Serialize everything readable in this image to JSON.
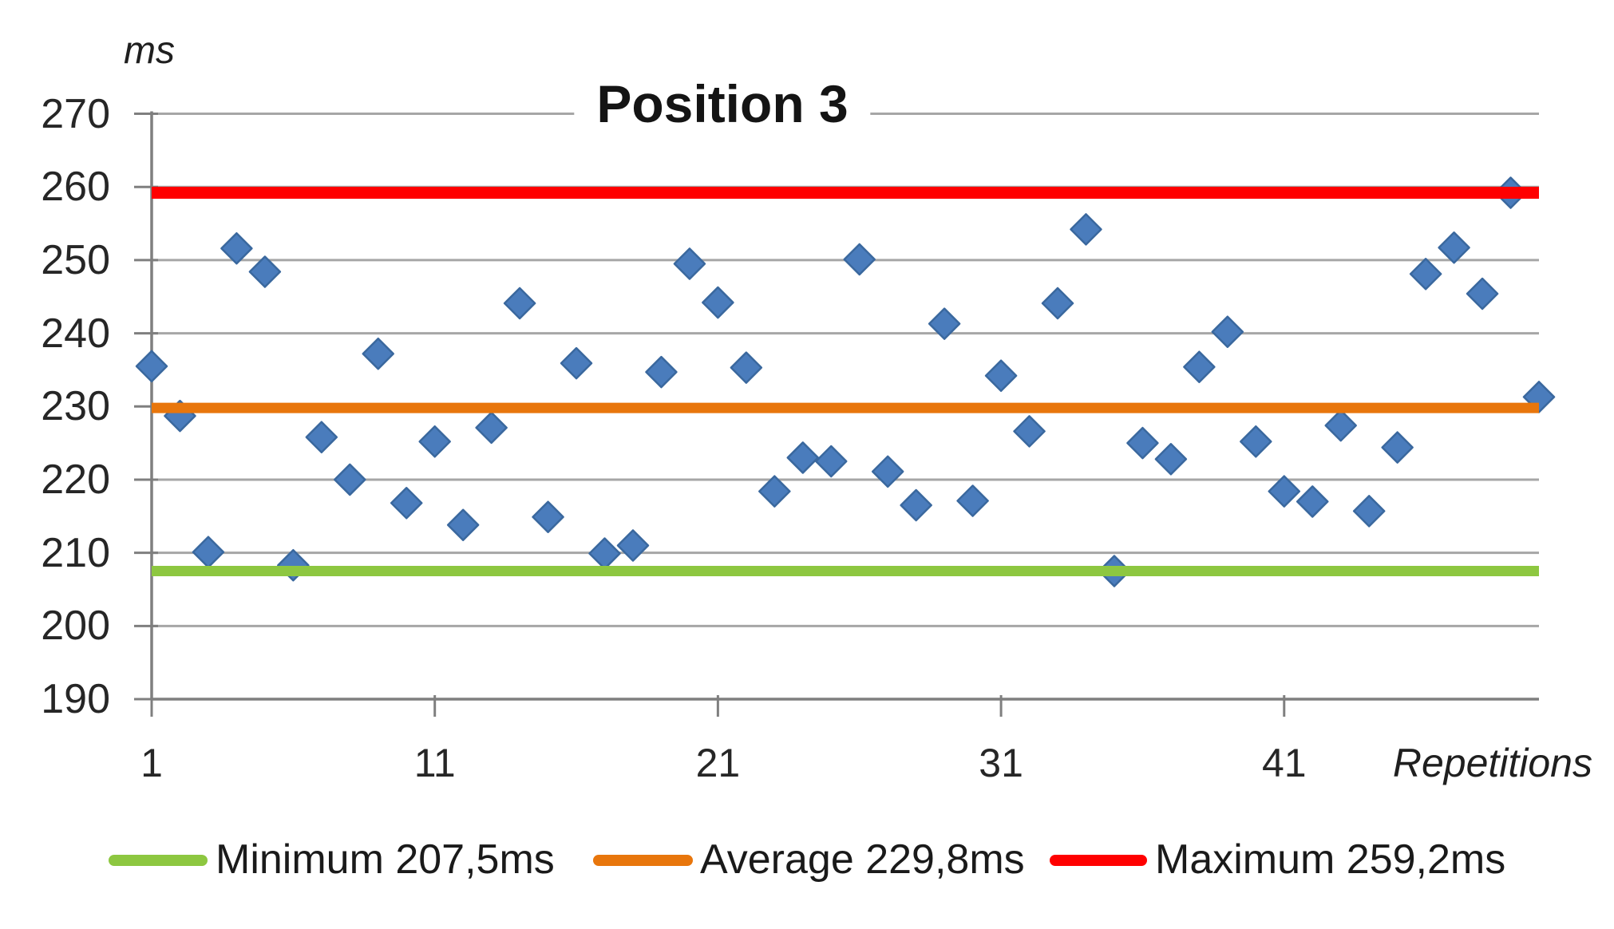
{
  "title": "Position 3",
  "y_axis": {
    "unit_label": "ms",
    "ticks": [
      270,
      260,
      250,
      240,
      230,
      220,
      210,
      200,
      190
    ]
  },
  "x_axis": {
    "label": "Repetitions",
    "ticks": [
      1,
      11,
      21,
      31,
      41
    ]
  },
  "legend": [
    {
      "name": "minimum",
      "label": "Minimum 207,5ms",
      "color": "#8DC740"
    },
    {
      "name": "average",
      "label": "Average 229,8ms",
      "color": "#E8760C"
    },
    {
      "name": "maximum",
      "label": "Maximum 259,2ms",
      "color": "#FF0000"
    }
  ],
  "colors": {
    "marker_fill": "#4A7CBC",
    "marker_edge": "#3A689E",
    "minimum_line": "#8DC740",
    "average_line": "#E8760C",
    "maximum_line": "#FF0000",
    "gridline": "#A6A6A6",
    "axis": "#7F7F7F",
    "text": "#1F1F1F"
  },
  "chart_data": {
    "type": "scatter",
    "title": "Position 3",
    "xlabel": "Repetitions",
    "ylabel": "ms",
    "xlim": [
      1,
      50
    ],
    "ylim": [
      190,
      270
    ],
    "grid": true,
    "legend_position": "bottom",
    "marker": "diamond",
    "x": [
      1,
      2,
      3,
      4,
      5,
      6,
      7,
      8,
      9,
      10,
      11,
      12,
      13,
      14,
      15,
      16,
      17,
      18,
      19,
      20,
      21,
      22,
      23,
      24,
      25,
      26,
      27,
      28,
      29,
      30,
      31,
      32,
      33,
      34,
      35,
      36,
      37,
      38,
      39,
      40,
      41,
      42,
      43,
      44,
      45,
      46,
      47,
      48,
      49,
      50
    ],
    "values": [
      235.5,
      228.7,
      210.1,
      251.6,
      248.4,
      208.3,
      225.8,
      220.0,
      237.2,
      216.8,
      225.2,
      213.8,
      227.1,
      244.1,
      214.9,
      235.9,
      209.9,
      211.0,
      234.7,
      249.5,
      244.2,
      235.3,
      218.4,
      223.0,
      222.5,
      250.1,
      221.1,
      216.5,
      241.3,
      217.1,
      234.2,
      226.6,
      244.1,
      254.2,
      207.5,
      225.0,
      222.8,
      235.4,
      240.2,
      225.2,
      218.4,
      217.0,
      227.4,
      215.7,
      224.4,
      248.1,
      251.7,
      245.4,
      259.2,
      231.3
    ],
    "reference_lines": [
      {
        "name": "minimum",
        "label": "Minimum 207,5ms",
        "value": 207.5,
        "color": "#8DC740"
      },
      {
        "name": "average",
        "label": "Average 229,8ms",
        "value": 229.8,
        "color": "#E8760C"
      },
      {
        "name": "maximum",
        "label": "Maximum 259,2ms",
        "value": 259.2,
        "color": "#FF0000"
      }
    ]
  }
}
